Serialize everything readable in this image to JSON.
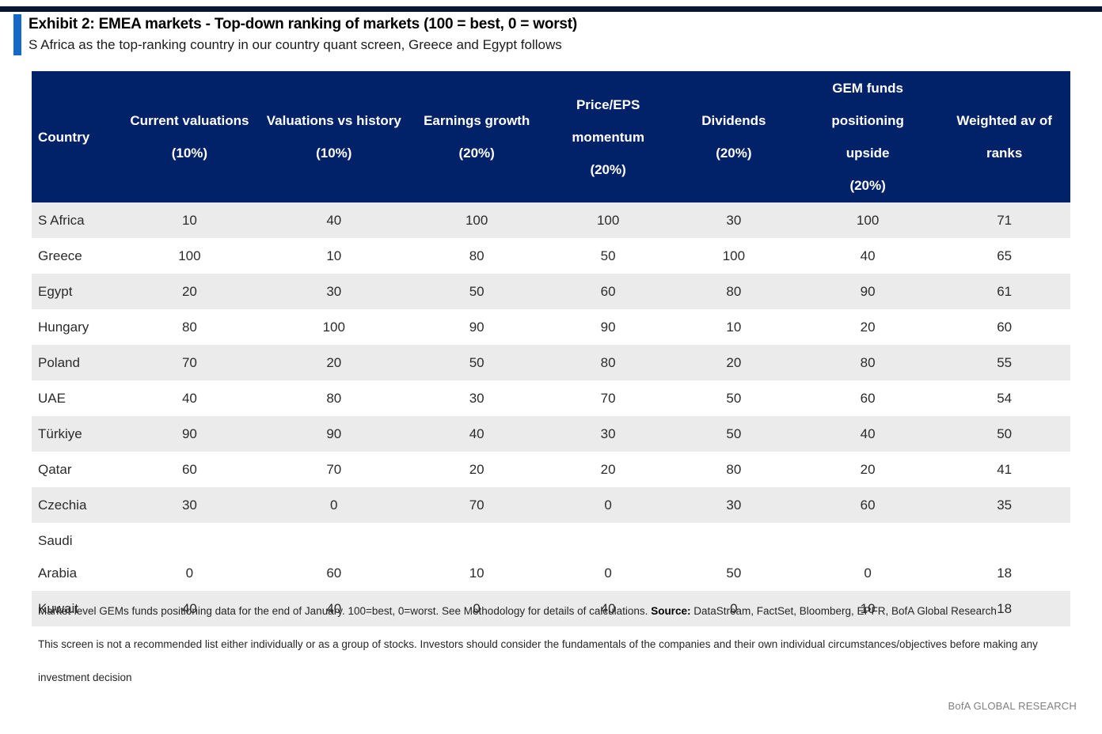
{
  "colors": {
    "top_rule": "#071635",
    "accent_bar": "#1569C9",
    "header_bg": "#012169",
    "alt_row": "#EBEBEB"
  },
  "exhibit": {
    "title": "Exhibit 2: EMEA markets - Top-down ranking of markets (100 = best, 0 = worst)",
    "subtitle": "S Africa as the top-ranking country in our country quant screen, Greece and Egypt follows"
  },
  "table": {
    "columns": [
      {
        "key": "country",
        "lines": [
          "Country"
        ]
      },
      {
        "key": "current-valuations",
        "lines": [
          "Current valuations",
          "(10%)"
        ]
      },
      {
        "key": "valuations-vs-history",
        "lines": [
          "Valuations vs history",
          "(10%)"
        ]
      },
      {
        "key": "earnings-growth",
        "lines": [
          "Earnings growth",
          "(20%)"
        ]
      },
      {
        "key": "price-eps-momentum",
        "lines": [
          "Price/EPS",
          "momentum",
          "(20%)"
        ]
      },
      {
        "key": "dividends",
        "lines": [
          "Dividends",
          "(20%)"
        ]
      },
      {
        "key": "gem-funds-positioning-upside",
        "lines": [
          "GEM funds positioning",
          "upside",
          "(20%)"
        ]
      },
      {
        "key": "weighted-av-of-ranks",
        "lines": [
          "Weighted av of",
          "ranks"
        ]
      }
    ],
    "rows": [
      {
        "country": "S Africa",
        "values": [
          10,
          40,
          100,
          100,
          30,
          100,
          71
        ]
      },
      {
        "country": "Greece",
        "values": [
          100,
          10,
          80,
          50,
          100,
          40,
          65
        ]
      },
      {
        "country": "Egypt",
        "values": [
          20,
          30,
          50,
          60,
          80,
          90,
          61
        ]
      },
      {
        "country": "Hungary",
        "values": [
          80,
          100,
          90,
          90,
          10,
          20,
          60
        ]
      },
      {
        "country": "Poland",
        "values": [
          70,
          20,
          50,
          80,
          20,
          80,
          55
        ]
      },
      {
        "country": "UAE",
        "values": [
          40,
          80,
          30,
          70,
          50,
          60,
          54
        ]
      },
      {
        "country": "Türkiye",
        "values": [
          90,
          90,
          40,
          30,
          50,
          40,
          50
        ]
      },
      {
        "country": "Qatar",
        "values": [
          60,
          70,
          20,
          20,
          80,
          20,
          41
        ]
      },
      {
        "country": "Czechia",
        "values": [
          30,
          0,
          70,
          0,
          30,
          60,
          35
        ]
      },
      {
        "country": "Saudi Arabia",
        "values": [
          0,
          60,
          10,
          0,
          50,
          0,
          18
        ]
      },
      {
        "country": "Kuwait",
        "values": [
          40,
          40,
          0,
          40,
          0,
          10,
          18
        ]
      }
    ]
  },
  "footnotes": {
    "note": "Market-level GEMs funds positioning data for the end of January. 100=best, 0=worst. See Methodology for details of calculations. ",
    "source_label": "Source:",
    "source_text": " DataStream, FactSet, Bloomberg, EPFR, BofA Global Research",
    "disclaimer": "This screen is not a recommended list either individually or as a group of stocks. Investors should consider the fundamentals of the companies and their own individual circumstances/objectives before making any investment decision"
  },
  "page": {
    "brand": "BofA GLOBAL RESEARCH"
  }
}
